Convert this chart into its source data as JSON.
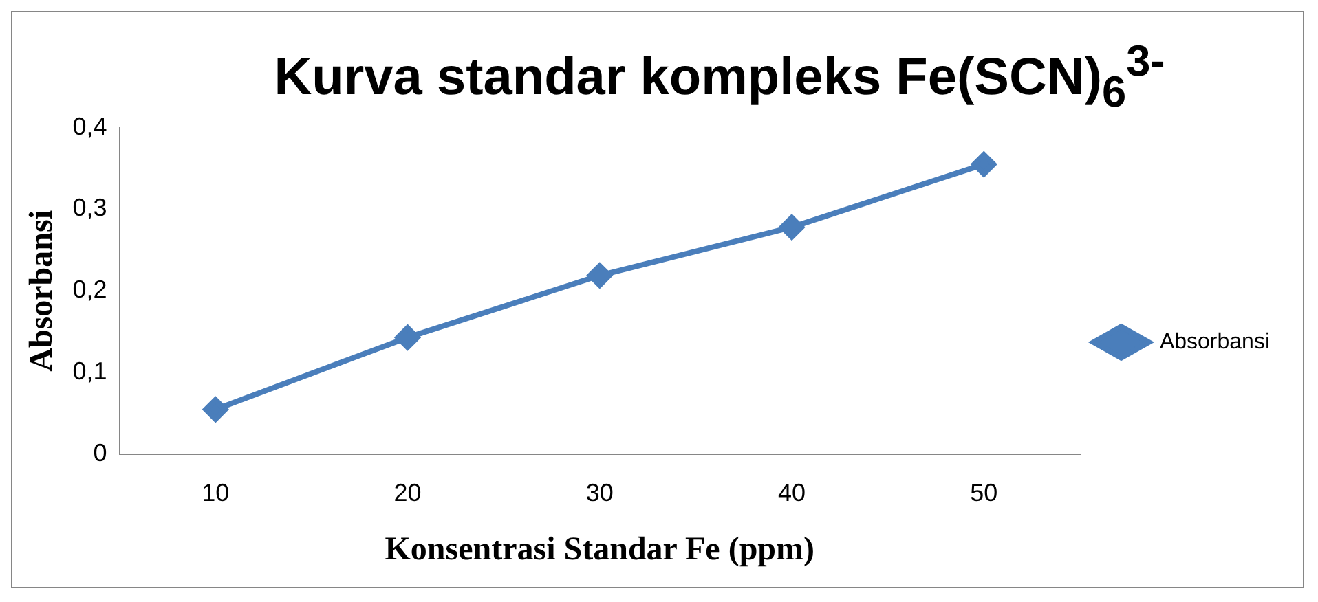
{
  "chart_data": {
    "type": "line",
    "title": "Kurva standar kompleks Fe(SCN)$_{6}$$^{3-}$",
    "xlabel": "Konsentrasi Standar Fe (ppm)",
    "ylabel": "Absorbansi",
    "categories": [
      "10",
      "20",
      "30",
      "40",
      "50"
    ],
    "series": [
      {
        "name": "Absorbansi",
        "color": "#4a7ebb",
        "values": [
          0.055,
          0.143,
          0.219,
          0.278,
          0.355
        ]
      }
    ],
    "ylim": [
      0,
      0.4
    ],
    "yticks": [
      {
        "value": 0,
        "label": "0"
      },
      {
        "value": 0.1,
        "label": "0,1"
      },
      {
        "value": 0.2,
        "label": "0,2"
      },
      {
        "value": 0.3,
        "label": "0,3"
      },
      {
        "value": 0.4,
        "label": "0,4"
      }
    ],
    "grid": false,
    "legend": "right",
    "marker": "diamond",
    "line_style": "solid"
  }
}
